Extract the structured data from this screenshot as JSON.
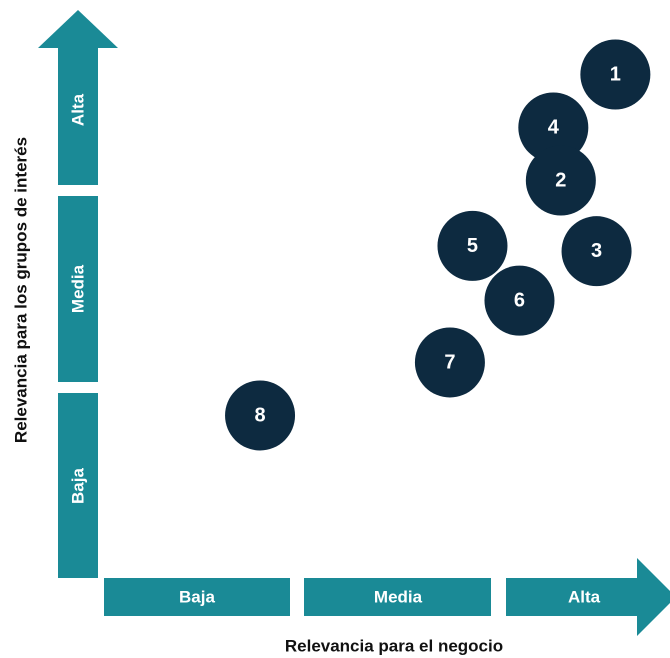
{
  "chart_data": {
    "type": "scatter",
    "title": "",
    "xlabel": "Relevancia para el negocio",
    "ylabel": "Relevancia para los grupos de interés",
    "x_levels": [
      "Baja",
      "Media",
      "Alta"
    ],
    "y_levels": [
      "Baja",
      "Media",
      "Alta"
    ],
    "xlim": [
      0,
      3
    ],
    "ylim": [
      0,
      3
    ],
    "grid": false,
    "colors": {
      "axis": "#1a8a96",
      "bubble": "#0d2a40",
      "text": "#ffffff"
    },
    "points": [
      {
        "label": "1",
        "x": 2.72,
        "y": 2.85
      },
      {
        "label": "4",
        "x": 2.39,
        "y": 2.55
      },
      {
        "label": "2",
        "x": 2.43,
        "y": 2.25
      },
      {
        "label": "5",
        "x": 1.96,
        "y": 1.88
      },
      {
        "label": "3",
        "x": 2.62,
        "y": 1.85
      },
      {
        "label": "6",
        "x": 2.21,
        "y": 1.57
      },
      {
        "label": "7",
        "x": 1.84,
        "y": 1.22
      },
      {
        "label": "8",
        "x": 0.83,
        "y": 0.92
      }
    ]
  }
}
